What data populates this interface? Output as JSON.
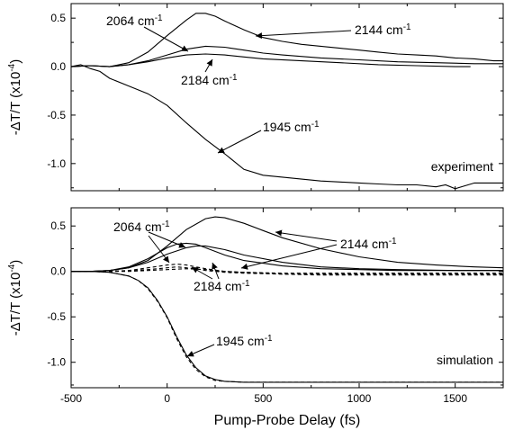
{
  "chart_data": [
    {
      "type": "line",
      "panel": "top",
      "annotation": "experiment",
      "ylabel_main": "-ΔT/T (x10",
      "ylabel_exp": "-4",
      "ylabel_close": ")",
      "xlim": [
        -500,
        1750
      ],
      "ylim": [
        -1.28,
        0.65
      ],
      "xticks": [
        -500,
        0,
        500,
        1000,
        1500
      ],
      "yticks": [
        0.5,
        0.0,
        -0.5,
        -1.0
      ],
      "ytick_labels": [
        "0.5",
        "0.0",
        "-0.5",
        "-1.0"
      ],
      "series": [
        {
          "name": "2144 cm-1",
          "label_main": "2144 cm",
          "label_exp": "-1",
          "style": "solid",
          "x": [
            -500,
            -400,
            -300,
            -200,
            -100,
            0,
            100,
            150,
            200,
            250,
            300,
            400,
            500,
            600,
            700,
            800,
            900,
            1000,
            1100,
            1200,
            1300,
            1400,
            1500,
            1600,
            1700,
            1750
          ],
          "y": [
            0.0,
            0.01,
            0.0,
            0.04,
            0.15,
            0.32,
            0.48,
            0.55,
            0.55,
            0.52,
            0.47,
            0.38,
            0.3,
            0.26,
            0.23,
            0.21,
            0.19,
            0.17,
            0.15,
            0.13,
            0.12,
            0.11,
            0.09,
            0.08,
            0.06,
            0.06
          ]
        },
        {
          "name": "2064 cm-1",
          "label_main": "2064 cm",
          "label_exp": "-1",
          "style": "solid",
          "x": [
            -500,
            -400,
            -300,
            -200,
            -100,
            0,
            100,
            200,
            300,
            400,
            500,
            600,
            800,
            1000,
            1200,
            1400,
            1600,
            1750
          ],
          "y": [
            0.0,
            0.01,
            0.0,
            0.02,
            0.06,
            0.12,
            0.18,
            0.21,
            0.2,
            0.17,
            0.14,
            0.12,
            0.09,
            0.07,
            0.05,
            0.04,
            0.03,
            0.03
          ]
        },
        {
          "name": "2184 cm-1",
          "label_main": "2184 cm",
          "label_exp": "-1",
          "style": "solid",
          "x": [
            -500,
            -400,
            -300,
            -200,
            -100,
            0,
            100,
            200,
            300,
            400,
            500,
            700,
            900,
            1100,
            1300,
            1500,
            1580
          ],
          "y": [
            0.0,
            0.01,
            0.0,
            0.02,
            0.05,
            0.09,
            0.12,
            0.13,
            0.12,
            0.1,
            0.08,
            0.06,
            0.04,
            0.02,
            0.01,
            0.0,
            0.0
          ]
        },
        {
          "name": "1945 cm-1",
          "label_main": "1945 cm",
          "label_exp": "-1",
          "style": "solid",
          "x": [
            -500,
            -450,
            -400,
            -350,
            -300,
            -200,
            -100,
            0,
            100,
            200,
            300,
            400,
            500,
            600,
            700,
            800,
            900,
            1000,
            1100,
            1200,
            1300,
            1400,
            1450,
            1500,
            1600,
            1700,
            1750
          ],
          "y": [
            0.0,
            0.02,
            -0.02,
            -0.05,
            -0.12,
            -0.2,
            -0.28,
            -0.4,
            -0.58,
            -0.75,
            -0.9,
            -1.06,
            -1.12,
            -1.14,
            -1.16,
            -1.18,
            -1.19,
            -1.2,
            -1.21,
            -1.22,
            -1.22,
            -1.24,
            -1.22,
            -1.26,
            -1.2,
            -1.2,
            -1.2
          ]
        }
      ]
    },
    {
      "type": "line",
      "panel": "bottom",
      "annotation": "simulation",
      "ylabel_main": "-ΔT/T (x10",
      "ylabel_exp": "-4",
      "ylabel_close": ")",
      "xlabel": "Pump-Probe Delay (fs)",
      "xlim": [
        -500,
        1750
      ],
      "ylim": [
        -1.28,
        0.7
      ],
      "xticks": [
        -500,
        0,
        500,
        1000,
        1500
      ],
      "xtick_labels": [
        "-500",
        "0",
        "500",
        "1000",
        "1500"
      ],
      "yticks": [
        0.5,
        0.0,
        -0.5,
        -1.0
      ],
      "ytick_labels": [
        "0.5",
        "0.0",
        "-0.5",
        "-1.0"
      ],
      "series": [
        {
          "name": "2144 cm-1",
          "label_main": "2144 cm",
          "label_exp": "-1",
          "style": "solid",
          "x": [
            -500,
            -400,
            -300,
            -200,
            -100,
            0,
            100,
            200,
            250,
            300,
            400,
            500,
            600,
            800,
            1000,
            1200,
            1400,
            1600,
            1750
          ],
          "y": [
            0.0,
            0.0,
            0.01,
            0.04,
            0.12,
            0.28,
            0.46,
            0.58,
            0.6,
            0.59,
            0.53,
            0.45,
            0.37,
            0.25,
            0.16,
            0.1,
            0.07,
            0.05,
            0.04
          ]
        },
        {
          "name": "2064 cm-1",
          "label_main": "2064 cm",
          "label_exp": "-1",
          "style": "solid",
          "x": [
            -500,
            -400,
            -300,
            -200,
            -100,
            0,
            50,
            100,
            150,
            200,
            300,
            400,
            600,
            800,
            1000,
            1200,
            1500,
            1750
          ],
          "y": [
            0.0,
            0.0,
            0.01,
            0.05,
            0.14,
            0.26,
            0.3,
            0.31,
            0.3,
            0.26,
            0.18,
            0.12,
            0.06,
            0.03,
            0.02,
            0.01,
            0.01,
            0.01
          ]
        },
        {
          "name": "2184 cm-1",
          "label_main": "2184 cm",
          "label_exp": "-1",
          "style": "solid",
          "x": [
            -500,
            -400,
            -300,
            -200,
            -100,
            0,
            100,
            150,
            200,
            300,
            400,
            600,
            800,
            1000,
            1200,
            1500,
            1750
          ],
          "y": [
            0.0,
            0.0,
            0.01,
            0.04,
            0.1,
            0.19,
            0.26,
            0.28,
            0.28,
            0.24,
            0.18,
            0.1,
            0.05,
            0.03,
            0.02,
            0.01,
            0.01
          ]
        },
        {
          "name": "1945 cm-1",
          "label_main": "1945 cm",
          "label_exp": "-1",
          "style": "solid",
          "x": [
            -500,
            -400,
            -300,
            -200,
            -150,
            -100,
            -50,
            0,
            50,
            100,
            150,
            200,
            250,
            300,
            400,
            500,
            700,
            1000,
            1300,
            1750
          ],
          "y": [
            0.0,
            0.0,
            -0.01,
            -0.05,
            -0.1,
            -0.18,
            -0.32,
            -0.5,
            -0.72,
            -0.92,
            -1.06,
            -1.15,
            -1.19,
            -1.21,
            -1.22,
            -1.22,
            -1.22,
            -1.22,
            -1.22,
            -1.22
          ]
        },
        {
          "name": "",
          "style": "dashed",
          "x": [
            -500,
            -400,
            -300,
            -200,
            -100,
            0,
            50,
            100,
            150,
            200,
            300,
            400,
            600,
            800,
            1000,
            1200,
            1500,
            1750
          ],
          "y": [
            0.0,
            0.0,
            0.0,
            0.01,
            0.04,
            0.07,
            0.08,
            0.07,
            0.05,
            0.03,
            0.0,
            -0.01,
            -0.02,
            -0.02,
            -0.02,
            -0.02,
            -0.02,
            -0.02
          ]
        },
        {
          "name": "",
          "style": "dashed",
          "x": [
            -500,
            -400,
            -300,
            -200,
            -100,
            0,
            50,
            100,
            150,
            200,
            300,
            400,
            600,
            800,
            1000,
            1200,
            1500,
            1750
          ],
          "y": [
            0.0,
            0.0,
            0.0,
            0.01,
            0.02,
            0.04,
            0.05,
            0.04,
            0.03,
            0.01,
            -0.01,
            -0.02,
            -0.03,
            -0.03,
            -0.03,
            -0.03,
            -0.03,
            -0.03
          ]
        },
        {
          "name": "",
          "style": "dashed",
          "x": [
            -500,
            -400,
            -300,
            -200,
            -100,
            0,
            100,
            200,
            300,
            400,
            600,
            800,
            1000,
            1200,
            1500,
            1750
          ],
          "y": [
            0.0,
            0.0,
            0.0,
            0.0,
            0.01,
            0.02,
            0.03,
            0.02,
            0.0,
            -0.01,
            -0.03,
            -0.04,
            -0.04,
            -0.04,
            -0.04,
            -0.04
          ]
        },
        {
          "name": "",
          "style": "dashed",
          "x": [
            -500,
            -400,
            -300,
            -200,
            -150,
            -100,
            -50,
            0,
            50,
            100,
            150,
            200,
            250,
            300,
            400,
            500,
            700,
            1000,
            1300,
            1750
          ],
          "y": [
            0.0,
            0.0,
            -0.01,
            -0.05,
            -0.1,
            -0.19,
            -0.33,
            -0.51,
            -0.74,
            -0.94,
            -1.08,
            -1.16,
            -1.2,
            -1.21,
            -1.22,
            -1.22,
            -1.22,
            -1.22,
            -1.22,
            -1.22
          ]
        }
      ]
    }
  ]
}
